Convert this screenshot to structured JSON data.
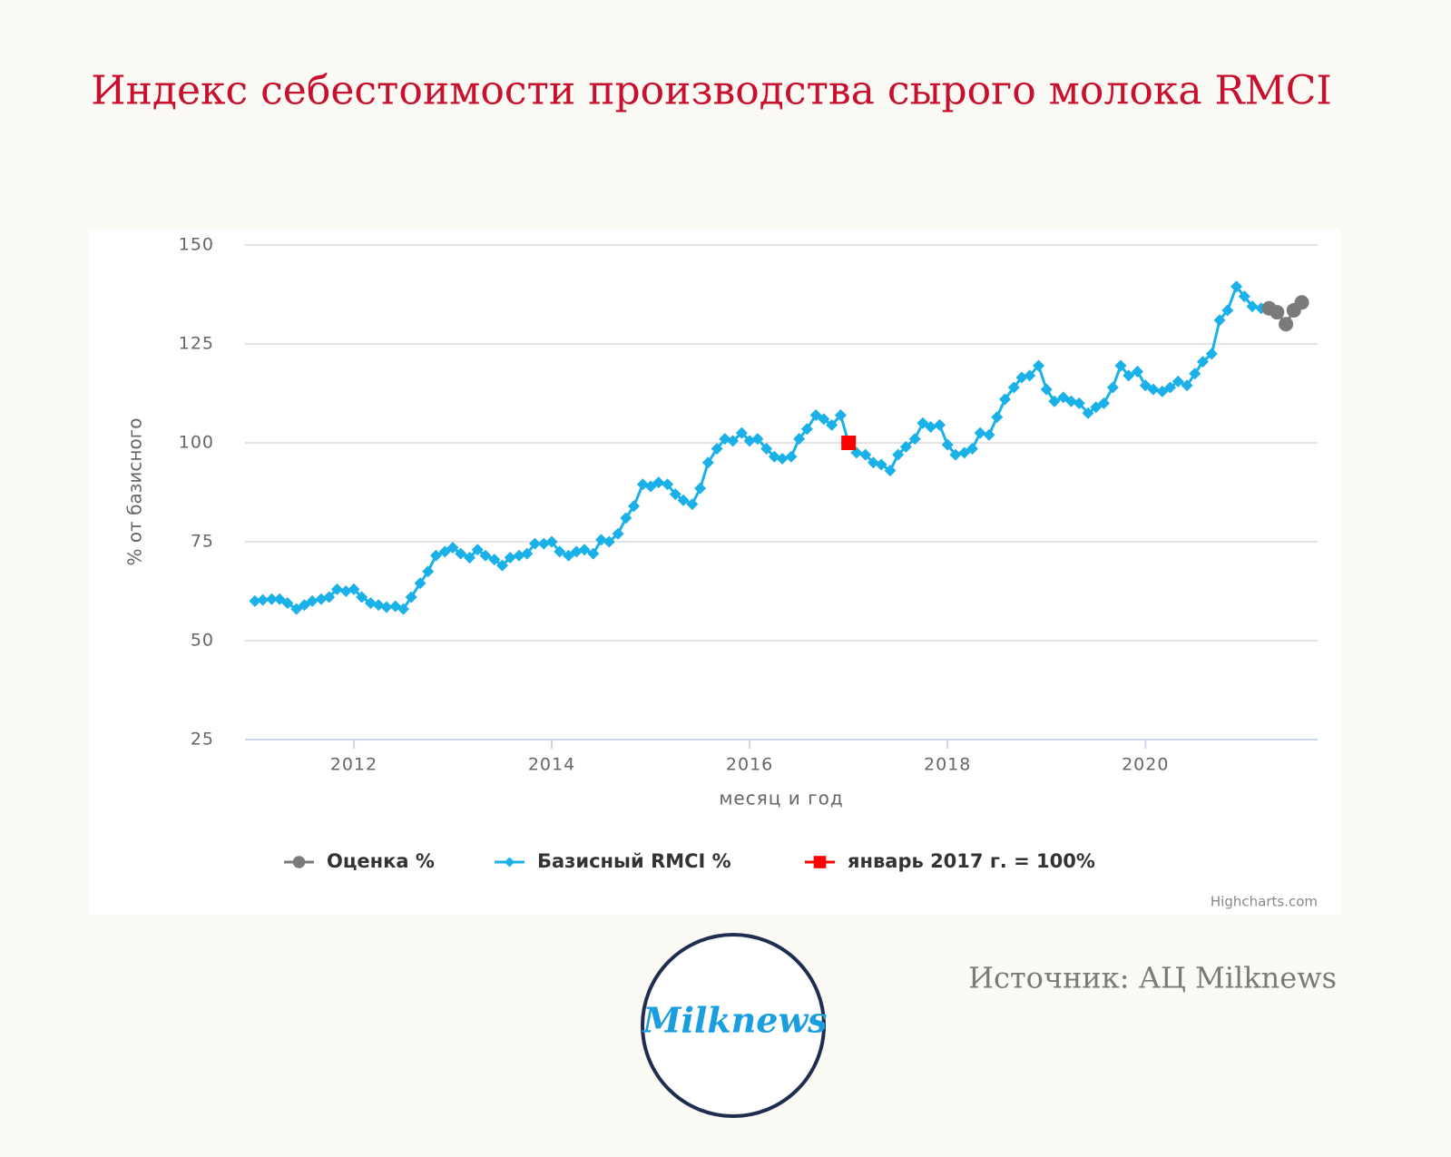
{
  "chart_data": {
    "type": "line",
    "title": "Индекс себестоимости производства сырого молока RMCI",
    "ylabel": "% от базисного",
    "xlabel": "месяц и год",
    "credits": "Highcharts.com",
    "source": "Источник: АЦ Milknews",
    "logo": "Milknews",
    "xlim": [
      2010.9,
      2021.74
    ],
    "xticks": [
      2012,
      2014,
      2016,
      2018,
      2020
    ],
    "ylim": [
      25,
      150
    ],
    "yticks": [
      25,
      50,
      75,
      100,
      125,
      150
    ],
    "grid": true,
    "legend": "bottom",
    "series": [
      {
        "name": "Оценка %",
        "color": "#7a7a7a",
        "marker": "circle",
        "x": [
          2021.25,
          2021.33,
          2021.42,
          2021.5,
          2021.58
        ],
        "values": [
          134,
          133,
          130,
          133.5,
          135.5
        ]
      },
      {
        "name": "Базисный RMCI %",
        "color": "#1ab0e8",
        "marker": "diamond",
        "x": [
          2011.0,
          2011.08,
          2011.17,
          2011.25,
          2011.33,
          2011.42,
          2011.5,
          2011.58,
          2011.67,
          2011.75,
          2011.83,
          2011.92,
          2012.0,
          2012.08,
          2012.17,
          2012.25,
          2012.33,
          2012.42,
          2012.5,
          2012.58,
          2012.67,
          2012.75,
          2012.83,
          2012.92,
          2013.0,
          2013.08,
          2013.17,
          2013.25,
          2013.33,
          2013.42,
          2013.5,
          2013.58,
          2013.67,
          2013.75,
          2013.83,
          2013.92,
          2014.0,
          2014.08,
          2014.17,
          2014.25,
          2014.33,
          2014.42,
          2014.5,
          2014.58,
          2014.67,
          2014.75,
          2014.83,
          2014.92,
          2015.0,
          2015.08,
          2015.17,
          2015.25,
          2015.33,
          2015.42,
          2015.5,
          2015.58,
          2015.67,
          2015.75,
          2015.83,
          2015.92,
          2016.0,
          2016.08,
          2016.17,
          2016.25,
          2016.33,
          2016.42,
          2016.5,
          2016.58,
          2016.67,
          2016.75,
          2016.83,
          2016.92,
          2017.0,
          2017.08,
          2017.17,
          2017.25,
          2017.33,
          2017.42,
          2017.5,
          2017.58,
          2017.67,
          2017.75,
          2017.83,
          2017.92,
          2018.0,
          2018.08,
          2018.17,
          2018.25,
          2018.33,
          2018.42,
          2018.5,
          2018.58,
          2018.67,
          2018.75,
          2018.83,
          2018.92,
          2019.0,
          2019.08,
          2019.17,
          2019.25,
          2019.33,
          2019.42,
          2019.5,
          2019.58,
          2019.67,
          2019.75,
          2019.83,
          2019.92,
          2020.0,
          2020.08,
          2020.17,
          2020.25,
          2020.33,
          2020.42,
          2020.5,
          2020.58,
          2020.67,
          2020.75,
          2020.83,
          2020.92,
          2021.0,
          2021.08,
          2021.17
        ],
        "values": [
          60,
          60.3,
          60.5,
          60.5,
          59.5,
          58,
          59,
          60,
          60.5,
          61,
          63,
          62.5,
          63,
          61,
          59.5,
          59,
          58.5,
          58.7,
          58,
          61,
          64.5,
          67.5,
          71.5,
          72.5,
          73.5,
          72,
          71,
          73,
          71.5,
          70.5,
          69,
          71,
          71.5,
          72,
          74.5,
          74.5,
          75,
          72.5,
          71.5,
          72.5,
          73,
          72,
          75.5,
          75,
          77,
          81,
          84,
          89.5,
          89,
          90,
          89.5,
          87,
          85.5,
          84.5,
          88.5,
          95,
          98.5,
          101,
          100.5,
          102.5,
          100.5,
          101,
          98.5,
          96.5,
          96,
          96.5,
          101,
          103.5,
          107,
          106,
          104.5,
          107,
          100,
          97.5,
          97,
          95,
          94.5,
          93,
          97,
          99,
          101,
          105,
          104,
          104.5,
          99.5,
          97,
          97.5,
          98.5,
          102.5,
          102,
          106.5,
          111,
          114,
          116.5,
          117,
          119.5,
          113.5,
          110.5,
          111.5,
          110.5,
          110,
          107.5,
          109,
          110,
          114,
          119.5,
          117,
          118,
          114.5,
          113.5,
          113,
          114,
          115.5,
          114.5,
          117.5,
          120.5,
          122.5,
          131,
          133.5,
          139.5,
          137,
          134.5,
          134
        ]
      },
      {
        "name": "январь 2017 г. = 100%",
        "color": "#ff0000",
        "marker": "square",
        "x": [
          2017.0
        ],
        "values": [
          100
        ]
      }
    ]
  }
}
